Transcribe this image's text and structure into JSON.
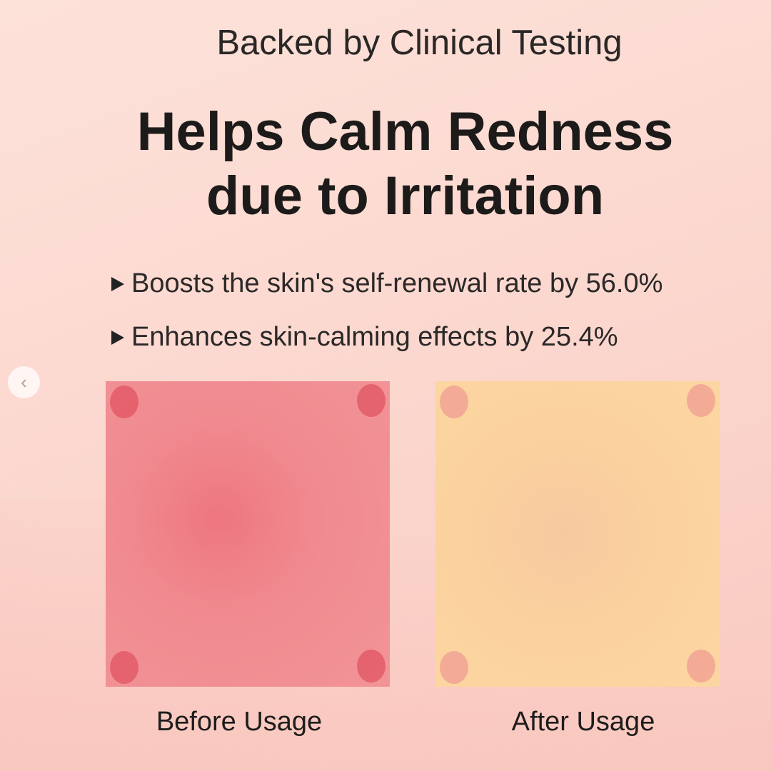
{
  "header": {
    "subtitle": "Backed by Clinical Testing",
    "title_line1": "Helps Calm Redness",
    "title_line2": "due to Irritation"
  },
  "bullets": [
    {
      "text": "Boosts the skin's self-renewal rate by 56.0%"
    },
    {
      "text": "Enhances skin-calming effects by 25.4%"
    }
  ],
  "comparison": {
    "before_label": "Before Usage",
    "after_label": "After Usage"
  },
  "carousel": {
    "prev_icon": "chevron-left-icon",
    "prev_glyph": "‹"
  },
  "colors": {
    "background": "#fbd6cd",
    "before_skin": "#f08a90",
    "after_skin": "#fbd29e"
  }
}
